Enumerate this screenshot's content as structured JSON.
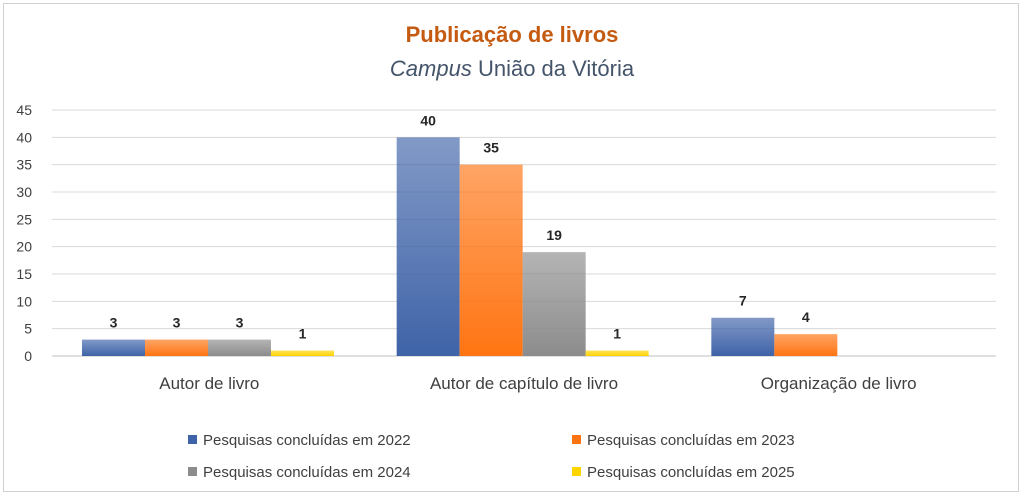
{
  "chart_data": {
    "type": "bar",
    "title": "Publicação de livros",
    "subtitle_italic": "Campus",
    "subtitle_rest": "União da Vitória",
    "categories": [
      "Autor de livro",
      "Autor de capítulo de livro",
      "Organização de livro"
    ],
    "ylim": [
      0,
      45
    ],
    "yticks": [
      0,
      5,
      10,
      15,
      20,
      25,
      30,
      35,
      40,
      45
    ],
    "grid": true,
    "legend_position": "bottom",
    "series": [
      {
        "name": "Pesquisas concluídas em 2022",
        "color": "#3f63a8",
        "values": [
          3,
          40,
          7
        ]
      },
      {
        "name": "Pesquisas concluídas em 2023",
        "color": "#ff7412",
        "values": [
          3,
          35,
          4
        ]
      },
      {
        "name": "Pesquisas concluídas em 2024",
        "color": "#8c8c8c",
        "values": [
          3,
          19,
          null
        ]
      },
      {
        "name": "Pesquisas concluídas em 2025",
        "color": "#ffd400",
        "values": [
          1,
          1,
          null
        ]
      }
    ]
  }
}
